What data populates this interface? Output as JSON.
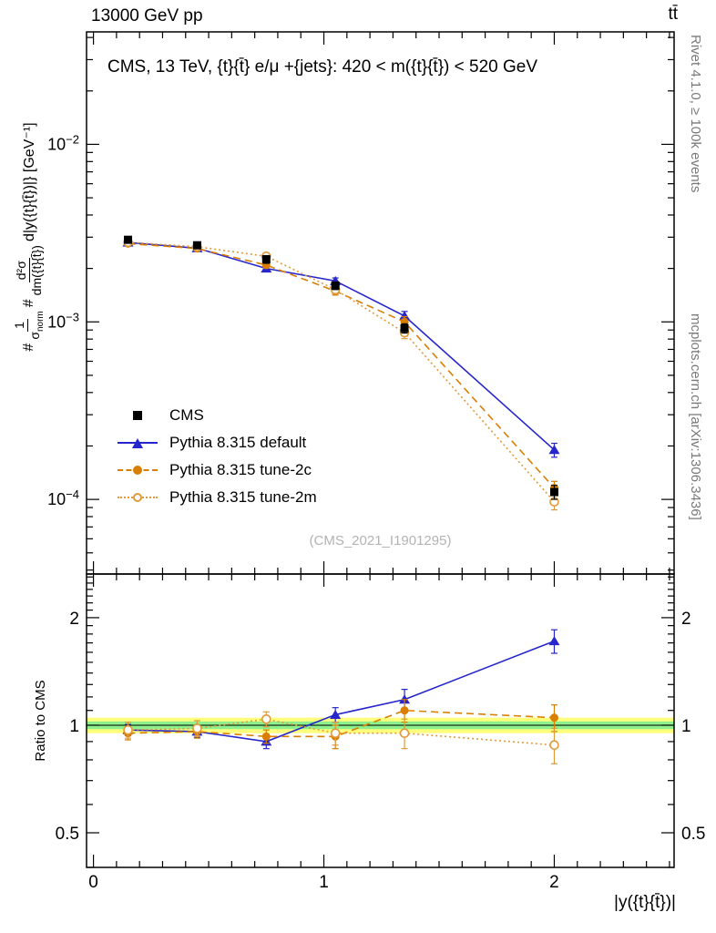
{
  "header": {
    "left": "13000 GeV pp",
    "right": "tt̄"
  },
  "plot_title": "CMS, 13 TeV, {t}{t̄} e/μ +{jets}: 420 < m({t}{t̄}) < 520 GeV",
  "watermark": "(CMS_2021_I1901295)",
  "side_notes": {
    "top": "Rivet 4.1.0, ≥ 100k events",
    "bottom": "mcplots.cern.ch [arXiv:1306.3436]"
  },
  "x_axis_label": "|y({t}{t̄})|",
  "ratio_axis_label": "Ratio to CMS",
  "y_axis_label": {
    "hash1": "#",
    "frac1_num": "1",
    "frac1_den_base": "σ",
    "frac1_den_sub": "norm",
    "hash2": "#",
    "frac2_num": "d²σ",
    "frac2_den": "dm({t}{t̄})",
    "suffix": "d|y({t}{t̄})|} [GeV⁻¹]"
  },
  "colors": {
    "note_gray": "#7a7a7a",
    "watermark_gray": "#b3b3b3"
  },
  "chart_data": {
    "type": "scatter",
    "title": "CMS, 13 TeV, {t}{t̄} e/μ +{jets}: 420 < m({t}{t̄}) < 520 GeV",
    "x": [
      0.15,
      0.45,
      0.75,
      1.05,
      1.35,
      2.0
    ],
    "x_axis": {
      "min": -0.03,
      "max": 2.52,
      "major_ticks": [
        0,
        1,
        2
      ],
      "minor_step": 0.1,
      "label": "|y({t}{t̄})|"
    },
    "y_axis": {
      "scale": "log",
      "min": 3.8e-05,
      "max": 0.043,
      "major_exponents": [
        -2,
        -3,
        -4
      ]
    },
    "ratio_axis": {
      "scale": "log",
      "min": 0.4,
      "max": 2.65,
      "major_ticks": [
        0.5,
        1,
        2
      ],
      "label": "Ratio to CMS"
    },
    "series": [
      {
        "id": "cms",
        "name": "CMS",
        "marker": "square",
        "line": "none",
        "color": "#000000",
        "values": [
          0.0029,
          0.0027,
          0.00225,
          0.0016,
          0.00092,
          0.00011
        ],
        "rel_err": [
          0.04,
          0.04,
          0.05,
          0.05,
          0.06,
          0.09
        ]
      },
      {
        "id": "pythia-default",
        "name": "Pythia 8.315 default",
        "marker": "triangle",
        "line": "solid",
        "color": "#2626cc",
        "values": [
          0.0028,
          0.0026,
          0.002,
          0.0017,
          0.00108,
          0.00019
        ],
        "rel_err": [
          0.03,
          0.03,
          0.035,
          0.04,
          0.06,
          0.09
        ],
        "ratio": [
          0.97,
          0.96,
          0.9,
          1.07,
          1.18,
          1.72
        ],
        "ratio_err": [
          0.035,
          0.035,
          0.04,
          0.05,
          0.08,
          0.13
        ]
      },
      {
        "id": "pythia-tune-2c",
        "name": "Pythia 8.315 tune-2c",
        "marker": "circle",
        "line": "dashed",
        "color": "#d97e00",
        "values": [
          0.00276,
          0.00259,
          0.00209,
          0.00149,
          0.001,
          0.000116
        ],
        "rel_err": [
          0.035,
          0.035,
          0.04,
          0.05,
          0.07,
          0.09
        ],
        "ratio": [
          0.95,
          0.96,
          0.93,
          0.93,
          1.1,
          1.05
        ],
        "ratio_err": [
          0.04,
          0.04,
          0.04,
          0.07,
          0.08,
          0.09
        ]
      },
      {
        "id": "pythia-tune-2m",
        "name": "Pythia 8.315 tune-2m",
        "marker": "circle-open",
        "line": "dotted",
        "color": "#e09a3c",
        "values": [
          0.00281,
          0.00265,
          0.00234,
          0.00152,
          0.00087,
          9.7e-05
        ],
        "rel_err": [
          0.04,
          0.04,
          0.045,
          0.055,
          0.075,
          0.1
        ],
        "ratio": [
          0.97,
          0.98,
          1.04,
          0.95,
          0.95,
          0.88
        ],
        "ratio_err": [
          0.05,
          0.05,
          0.05,
          0.07,
          0.09,
          0.1
        ]
      }
    ],
    "ratio_band": {
      "outer": {
        "color": "#ffff7d",
        "range": [
          0.95,
          1.05
        ]
      },
      "inner": {
        "color": "#8df08d",
        "range": [
          0.975,
          1.025
        ]
      }
    },
    "layout": {
      "grid": false,
      "legend_position": "inside-left-middle"
    }
  }
}
